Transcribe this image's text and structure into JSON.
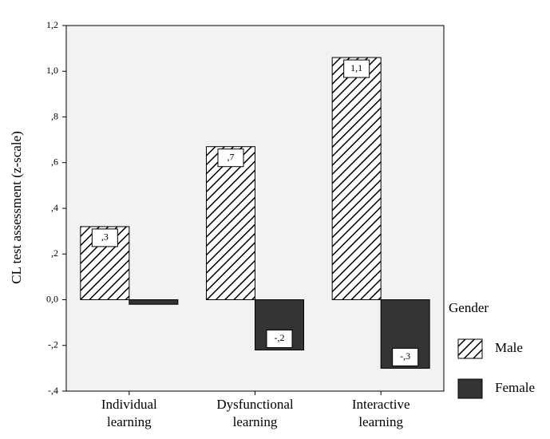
{
  "chart_data": {
    "type": "bar",
    "y_label": "CL test assessment (z-scale)",
    "categories": [
      "Individual learning",
      "Dysfunctional learning",
      "Interactive learning"
    ],
    "series": [
      {
        "name": "Male",
        "color": "#000000",
        "pattern": "hatch",
        "values": [
          0.32,
          0.67,
          1.06
        ],
        "value_labels": [
          ",3",
          ",7",
          "1,1"
        ]
      },
      {
        "name": "Female",
        "color": "#333333",
        "pattern": "solid",
        "values": [
          -0.02,
          -0.22,
          -0.3
        ],
        "value_labels": [
          null,
          "-,2",
          "-,3"
        ]
      }
    ],
    "ylim": [
      -0.4,
      1.2
    ],
    "yticks": [
      {
        "value": -0.4,
        "label": "-,4"
      },
      {
        "value": -0.2,
        "label": "-,2"
      },
      {
        "value": 0,
        "label": "0,0"
      },
      {
        "value": 0.2,
        "label": ",2"
      },
      {
        "value": 0.4,
        "label": ",4"
      },
      {
        "value": 0.6,
        "label": ",6"
      },
      {
        "value": 0.8,
        "label": ",8"
      },
      {
        "value": 1.0,
        "label": "1,0"
      },
      {
        "value": 1.2,
        "label": "1,2"
      }
    ],
    "legend_title": "Gender",
    "legend": "right"
  }
}
